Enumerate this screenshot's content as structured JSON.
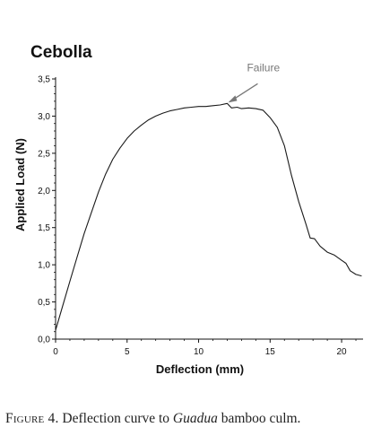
{
  "chart_data": {
    "type": "line",
    "title": "Cebolla",
    "xlabel": "Deflection (mm)",
    "ylabel": "Applied Load (N)",
    "xlim": [
      0,
      21.5
    ],
    "ylim": [
      0,
      3.5
    ],
    "x_ticks": [
      0,
      5,
      10,
      15,
      20
    ],
    "x_tick_labels": [
      "0",
      "5",
      "10",
      "15",
      "20"
    ],
    "y_ticks": [
      0,
      0.5,
      1.0,
      1.5,
      2.0,
      2.5,
      3.0,
      3.5
    ],
    "y_tick_labels": [
      "0,0",
      "0,5",
      "1,0",
      "1,5",
      "2,0",
      "2,5",
      "3,0",
      "3,5"
    ],
    "grid": false,
    "series": [
      {
        "points": [
          [
            0.0,
            0.12
          ],
          [
            0.5,
            0.45
          ],
          [
            1.0,
            0.78
          ],
          [
            1.5,
            1.1
          ],
          [
            2.0,
            1.42
          ],
          [
            2.5,
            1.7
          ],
          [
            3.0,
            1.98
          ],
          [
            3.5,
            2.22
          ],
          [
            4.0,
            2.42
          ],
          [
            4.5,
            2.57
          ],
          [
            5.0,
            2.7
          ],
          [
            5.5,
            2.8
          ],
          [
            6.0,
            2.88
          ],
          [
            6.5,
            2.95
          ],
          [
            7.0,
            3.0
          ],
          [
            7.5,
            3.04
          ],
          [
            8.0,
            3.07
          ],
          [
            8.5,
            3.09
          ],
          [
            9.0,
            3.11
          ],
          [
            9.5,
            3.12
          ],
          [
            10.0,
            3.13
          ],
          [
            10.5,
            3.13
          ],
          [
            11.0,
            3.14
          ],
          [
            11.5,
            3.15
          ],
          [
            12.0,
            3.17
          ],
          [
            12.3,
            3.11
          ],
          [
            12.7,
            3.12
          ],
          [
            13.0,
            3.1
          ],
          [
            13.5,
            3.11
          ],
          [
            14.0,
            3.1
          ],
          [
            14.5,
            3.08
          ],
          [
            15.0,
            2.98
          ],
          [
            15.5,
            2.85
          ],
          [
            16.0,
            2.6
          ],
          [
            16.5,
            2.2
          ],
          [
            17.0,
            1.85
          ],
          [
            17.5,
            1.55
          ],
          [
            17.8,
            1.36
          ],
          [
            18.1,
            1.35
          ],
          [
            18.5,
            1.25
          ],
          [
            19.0,
            1.17
          ],
          [
            19.5,
            1.13
          ],
          [
            20.0,
            1.06
          ],
          [
            20.3,
            1.02
          ],
          [
            20.6,
            0.92
          ],
          [
            21.0,
            0.87
          ],
          [
            21.4,
            0.85
          ]
        ]
      }
    ],
    "annotations": [
      {
        "text": "Failure",
        "x": 12.0,
        "y": 3.17
      }
    ],
    "line_color": "#1a1a1a",
    "annotation_color": "#777777"
  },
  "caption": {
    "label": "Figure 4.",
    "text_before": " Deflection curve to ",
    "genus": "Guadua",
    "text_after": " bamboo culm."
  }
}
